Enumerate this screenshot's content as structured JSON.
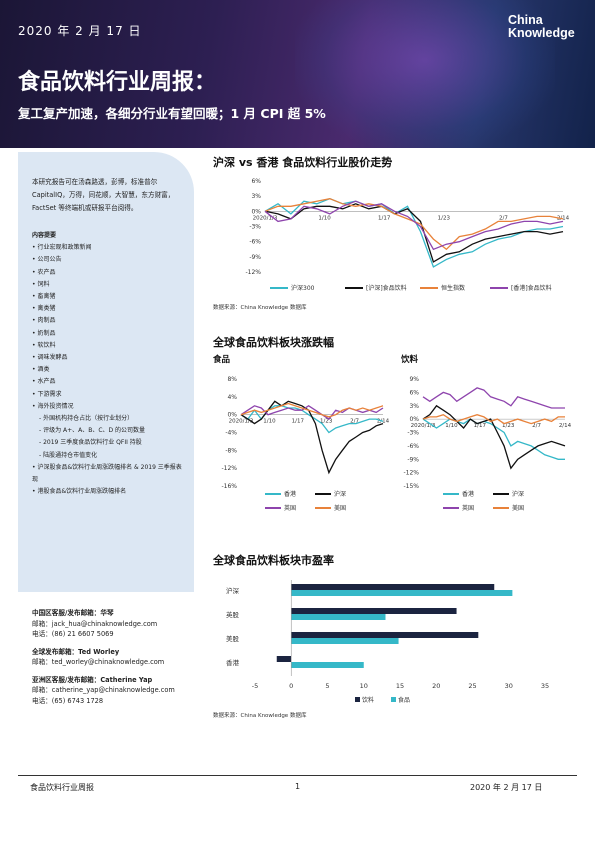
{
  "header": {
    "date": "2020 年 2 月 17 日",
    "title": "食品饮料行业周报：",
    "subtitle": "复工复产加速，各细分行业有望回暖；1 月 CPI 超 5%",
    "logo_line1": "China",
    "logo_line2": "Knowledge"
  },
  "sidebar": {
    "intro": "本研究报告可在汤森路透，彭博，标准普尔 CapitalIQ，万得，同花顺，大智慧，东方财富，FactSet 等终端机或研报平台阅得。",
    "content_heading": "内容提要",
    "items": [
      {
        "text": "行业宏观和政策新闻",
        "type": "b"
      },
      {
        "text": "公司公告",
        "type": "b"
      },
      {
        "text": "农产品",
        "type": "b"
      },
      {
        "text": "饲料",
        "type": "b"
      },
      {
        "text": "畜禽猪",
        "type": "b"
      },
      {
        "text": "禽类猪",
        "type": "b"
      },
      {
        "text": "肉制品",
        "type": "b"
      },
      {
        "text": "奶制品",
        "type": "b"
      },
      {
        "text": "软饮料",
        "type": "b"
      },
      {
        "text": "调味发酵品",
        "type": "b"
      },
      {
        "text": "酒类",
        "type": "b"
      },
      {
        "text": "水产品",
        "type": "b"
      },
      {
        "text": "下游需求",
        "type": "b"
      },
      {
        "text": "海外投资情况",
        "type": "b"
      },
      {
        "text": "外国机构持仓占比（按行业划分）",
        "type": "s"
      },
      {
        "text": "评级为 A+、A、B、C、D 的公司数量",
        "type": "s"
      },
      {
        "text": "2019 三季度食品饮料行业 QFII 持股",
        "type": "s"
      },
      {
        "text": "陆股通持仓市值变化",
        "type": "s"
      },
      {
        "text": "沪深股食品&饮料行业周涨跌幅排名 & 2019 三季报表现",
        "type": "b"
      },
      {
        "text": "港股食品&饮料行业周涨跌幅排名",
        "type": "b"
      }
    ]
  },
  "contacts": [
    {
      "title": "中国区客服/发布邮箱：华琴",
      "email_label": "邮箱：",
      "email": "jack_hua@chinaknowledge.com",
      "phone_label": "电话：",
      "phone": "(86) 21 6607 5069"
    },
    {
      "title": "全球发布邮箱：Ted Worley",
      "email_label": "邮箱：",
      "email": "ted_worley@chinaknowledge.com",
      "phone_label": "",
      "phone": ""
    },
    {
      "title": "亚洲区客服/发布邮箱：Catherine Yap",
      "email_label": "邮箱：",
      "email": "catherine_yap@chinaknowledge.com",
      "phone_label": "电话：",
      "phone": "(65) 6743 1728"
    }
  ],
  "sections": {
    "chart1_title": "沪深 vs 香港  食品饮料行业股价走势",
    "chart1_source": "数据来源：China Knowledge 数据库",
    "chart2_title": "全球食品饮料板块涨跌幅",
    "chart2a_sub": "食品",
    "chart2b_sub": "饮料",
    "chart3_title": "全球食品饮料板块市盈率",
    "chart3_source": "数据来源：China Knowledge 数据库"
  },
  "chart_data": [
    {
      "type": "line",
      "x_ticks": [
        "2020/1/3",
        "1/10",
        "1/17",
        "1/23",
        "2/7",
        "2/14"
      ],
      "ylim": [
        -12,
        6
      ],
      "y_ticks": [
        "6%",
        "3%",
        "0%",
        "-3%",
        "-6%",
        "-9%",
        "-12%"
      ],
      "series": [
        {
          "name": "沪深300",
          "color": "#35b8c8",
          "values": [
            0,
            1.5,
            -0.5,
            2,
            1.5,
            2.5,
            1.5,
            2,
            1,
            1.5,
            -0.5,
            1,
            -4,
            -11,
            -9.5,
            -8.5,
            -8,
            -6.5,
            -5.5,
            -5,
            -4,
            -3.5,
            -3.5,
            -3
          ]
        },
        {
          "name": "[沪深]食品饮料",
          "color": "#111111",
          "values": [
            0,
            -0.5,
            -1.5,
            0.5,
            1,
            1,
            0.5,
            1.5,
            0.5,
            1,
            -0.5,
            0.5,
            -2,
            -10,
            -8.5,
            -8,
            -6.5,
            -5.5,
            -5,
            -4.5,
            -4,
            -4,
            -4.5,
            -4
          ]
        },
        {
          "name": "恒生指数",
          "color": "#e8823a",
          "values": [
            0,
            1,
            1,
            1.5,
            2,
            2.5,
            1.5,
            1,
            1.5,
            1,
            -0.5,
            -1.5,
            -2.5,
            -5.5,
            -7.5,
            -5,
            -4.5,
            -3.5,
            -2,
            -2,
            -1.5,
            -1,
            -1,
            -1.5
          ]
        },
        {
          "name": "[香港]食品饮料",
          "color": "#8e44ad",
          "values": [
            0,
            -2,
            -1.5,
            1,
            0.5,
            -0.5,
            1,
            2,
            1,
            1.5,
            0,
            -1,
            -3,
            -7.5,
            -6.5,
            -6,
            -5,
            -4,
            -3.5,
            -2.5,
            -2,
            -2,
            -2.5,
            -2
          ]
        }
      ]
    },
    {
      "type": "line",
      "title": "食品",
      "x_ticks": [
        "2020/1/3",
        "1/10",
        "1/17",
        "1/23",
        "2/7",
        "2/14"
      ],
      "ylim": [
        -16,
        8
      ],
      "y_ticks": [
        "8%",
        "4%",
        "0%",
        "-4%",
        "-8%",
        "-12%",
        "-16%"
      ],
      "series": [
        {
          "name": "香港",
          "color": "#35b8c8",
          "values": [
            0,
            -1,
            1,
            -1,
            1,
            2,
            2,
            1.5,
            1.5,
            1,
            0,
            -1,
            -2,
            -4,
            -3,
            -2.5,
            -2,
            -2,
            -1.5,
            -1,
            -1,
            -1.5
          ]
        },
        {
          "name": "沪深",
          "color": "#111111",
          "values": [
            0,
            -1,
            -2,
            -1,
            1,
            3,
            2,
            3,
            2.5,
            2,
            1,
            -2,
            -8,
            -13,
            -10,
            -8,
            -6,
            -5,
            -4,
            -3.5,
            -2.5,
            -2
          ]
        },
        {
          "name": "英国",
          "color": "#8e44ad",
          "values": [
            0,
            1,
            2,
            1.5,
            0,
            0.5,
            1,
            1.5,
            1,
            1,
            2,
            1,
            0,
            -1,
            1,
            0.5,
            1.5,
            1,
            0.5,
            1,
            0.5,
            1.5
          ]
        },
        {
          "name": "美国",
          "color": "#e8823a",
          "values": [
            0,
            0.5,
            1,
            0.5,
            1,
            1.5,
            2,
            2.5,
            2,
            1.5,
            1,
            0.5,
            0,
            -0.5,
            0,
            1,
            1.5,
            1,
            1.5,
            1,
            1.5,
            2
          ]
        }
      ]
    },
    {
      "type": "line",
      "title": "饮料",
      "x_ticks": [
        "2020/1/3",
        "1/10",
        "1/17",
        "1/23",
        "2/7",
        "2/14"
      ],
      "ylim": [
        -15,
        9
      ],
      "y_ticks": [
        "9%",
        "6%",
        "3%",
        "0%",
        "-3%",
        "-6%",
        "-9%",
        "-12%",
        "-15%"
      ],
      "series": [
        {
          "name": "香港",
          "color": "#35b8c8",
          "values": [
            0,
            -1,
            -2,
            -1,
            0,
            -0.5,
            -1,
            0,
            -1,
            -0.5,
            -1,
            -2,
            -3,
            -6,
            -5,
            -5.5,
            -6,
            -7,
            -8,
            -8.5,
            -9,
            -9
          ]
        },
        {
          "name": "沪深",
          "color": "#111111",
          "values": [
            0,
            1,
            3,
            2,
            1,
            -0.5,
            -2,
            0,
            -1,
            -0.5,
            0,
            -3,
            -6,
            -11,
            -9,
            -8,
            -7,
            -6,
            -5.5,
            -5,
            -5.5,
            -6
          ]
        },
        {
          "name": "英国",
          "color": "#8e44ad",
          "values": [
            5,
            4,
            5,
            6,
            5.5,
            4,
            5,
            6,
            7,
            6.5,
            5,
            4.5,
            4,
            3,
            5,
            4.5,
            4,
            3.5,
            3,
            2.5,
            2.5,
            2.5
          ]
        },
        {
          "name": "美国",
          "color": "#e8823a",
          "values": [
            0,
            0.5,
            0.5,
            1,
            0,
            -0.5,
            0,
            0.5,
            1,
            0.5,
            -0.5,
            0,
            -1,
            -0.5,
            0,
            -0.5,
            -1,
            -0.5,
            0,
            -0.5,
            0.5,
            0.5
          ]
        }
      ]
    },
    {
      "type": "bar",
      "orientation": "horizontal",
      "categories": [
        "沪深",
        "英股",
        "美股",
        "香港"
      ],
      "xlim": [
        -5,
        35
      ],
      "x_ticks": [
        -5,
        0,
        5,
        10,
        15,
        20,
        25,
        30,
        35
      ],
      "series": [
        {
          "name": "饮料",
          "color": "#1b2440",
          "values": [
            28,
            22.8,
            25.8,
            -2
          ]
        },
        {
          "name": "食品",
          "color": "#35b8c8",
          "values": [
            30.5,
            13,
            14.8,
            10
          ]
        }
      ]
    }
  ],
  "footer": {
    "left": "食品饮料行业周报",
    "page": "1",
    "right": "2020 年 2 月 17 日"
  }
}
